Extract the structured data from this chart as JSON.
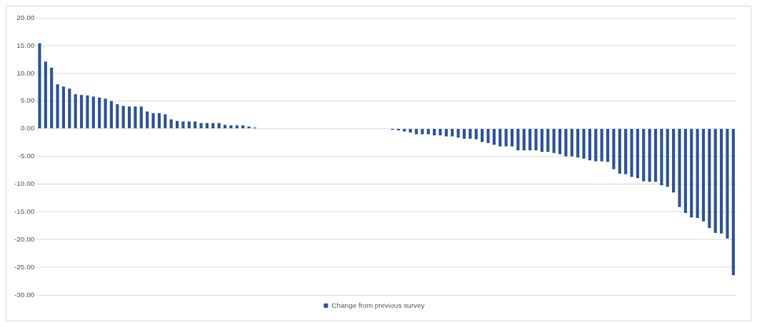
{
  "chart_data": {
    "type": "bar",
    "categories": [
      null,
      null,
      null,
      null,
      null,
      null,
      null,
      null,
      null,
      null,
      null,
      null,
      null,
      null,
      null,
      null,
      null,
      null,
      null,
      null,
      null,
      null,
      null,
      null,
      null,
      null,
      null,
      null,
      null,
      null,
      null,
      null,
      null,
      null,
      null,
      null,
      null,
      null,
      null,
      null,
      null,
      null,
      null,
      null,
      null,
      null,
      null,
      null,
      null,
      null,
      null,
      null,
      null,
      null,
      null,
      null,
      null,
      null,
      null,
      null,
      null,
      null,
      null,
      null,
      null,
      null,
      null,
      null,
      null,
      null,
      null,
      null,
      null,
      null,
      null,
      null,
      null,
      null,
      null,
      null,
      null,
      null,
      null,
      null,
      null,
      null,
      null,
      null,
      null,
      null,
      null,
      null,
      null,
      null,
      null,
      null,
      null,
      null,
      null,
      null,
      null,
      null,
      null,
      null,
      null,
      null,
      null,
      null,
      null,
      null,
      null,
      null,
      null,
      null,
      null,
      null,
      null
    ],
    "series": [
      {
        "name": "Change from previous survey",
        "color": "#2f5597",
        "values": [
          15.4,
          12.1,
          11.0,
          8.0,
          7.6,
          7.2,
          6.2,
          6.1,
          6.0,
          5.8,
          5.6,
          5.4,
          5.0,
          4.4,
          4.1,
          4.0,
          4.0,
          4.0,
          3.1,
          2.8,
          2.8,
          2.6,
          1.7,
          1.4,
          1.3,
          1.3,
          1.3,
          1.0,
          1.0,
          1.0,
          1.0,
          0.7,
          0.6,
          0.6,
          0.6,
          0.4,
          0.2,
          0,
          0,
          0,
          0,
          0,
          0,
          0,
          0,
          0,
          0,
          0,
          0,
          0,
          0,
          0,
          0,
          0,
          0,
          0,
          0,
          0,
          0,
          -0.2,
          -0.3,
          -0.5,
          -0.7,
          -1.0,
          -1.0,
          -1.0,
          -1.2,
          -1.2,
          -1.4,
          -1.4,
          -1.6,
          -1.8,
          -1.8,
          -1.9,
          -2.4,
          -2.6,
          -2.9,
          -3.2,
          -3.2,
          -3.2,
          -3.9,
          -3.9,
          -3.9,
          -3.9,
          -4.2,
          -4.2,
          -4.4,
          -4.6,
          -5.0,
          -5.0,
          -5.2,
          -5.4,
          -5.7,
          -5.9,
          -5.9,
          -6.0,
          -7.3,
          -8.1,
          -8.2,
          -8.7,
          -8.9,
          -9.5,
          -9.6,
          -9.6,
          -10.2,
          -10.5,
          -11.5,
          -14.1,
          -15.2,
          -16.0,
          -16.1,
          -16.7,
          -17.9,
          -18.8,
          -18.9,
          -19.8,
          -26.4
        ]
      }
    ],
    "ylim": [
      -30,
      20
    ],
    "yticks": [
      {
        "value": -30,
        "label": "-30.00"
      },
      {
        "value": -25,
        "label": "-25.00"
      },
      {
        "value": -20,
        "label": "-20.00"
      },
      {
        "value": -15,
        "label": "-15.00"
      },
      {
        "value": -10,
        "label": "-10.00"
      },
      {
        "value": -5,
        "label": "-5.00"
      },
      {
        "value": 0,
        "label": "0.00"
      },
      {
        "value": 5,
        "label": "5.00"
      },
      {
        "value": 10,
        "label": "10.00"
      },
      {
        "value": 15,
        "label": "15.00"
      },
      {
        "value": 20,
        "label": "20.00"
      }
    ],
    "grid": "y",
    "legend": "bottom"
  }
}
